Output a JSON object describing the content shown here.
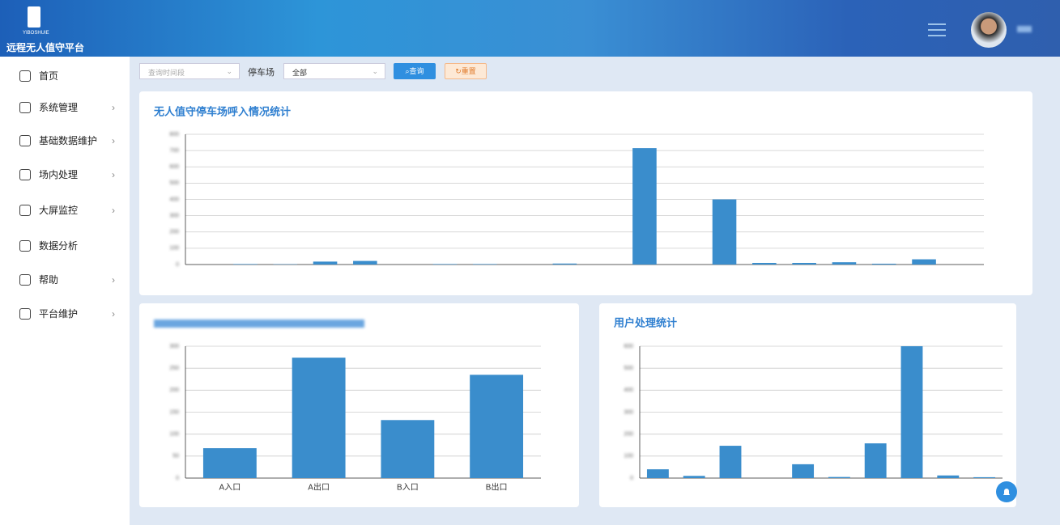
{
  "header": {
    "logo_text": "YIBOSHUIE",
    "title": "远程无人值守平台"
  },
  "sidebar": {
    "items": [
      "首页",
      "系统管理",
      "基础数据维护",
      "场内处理",
      "大屏监控",
      "数据分析",
      "帮助",
      "平台维护"
    ]
  },
  "filters": {
    "time_placeholder": "查询时间段",
    "lot_label": "停车场",
    "lot_value": "全部",
    "query": "查询",
    "reset": "重置"
  },
  "chart_data": [
    {
      "type": "bar",
      "title": "无人值守停车场呼入情况统计",
      "color": "#3a8dcc",
      "grid": true,
      "categories": [
        null,
        null,
        null,
        null,
        null,
        null,
        null,
        null,
        null,
        null,
        null,
        null,
        null,
        null,
        null,
        null,
        null,
        null,
        null,
        null
      ],
      "values": [
        0,
        3,
        2,
        18,
        22,
        0,
        3,
        3,
        0,
        6,
        0,
        715,
        0,
        400,
        10,
        10,
        14,
        5,
        32,
        0
      ],
      "ylim": [
        0,
        800
      ],
      "yticks": [
        0,
        100,
        200,
        300,
        400,
        500,
        600,
        700,
        800
      ]
    },
    {
      "type": "bar",
      "color": "#3a8dcc",
      "grid": true,
      "categories": [
        "A入口",
        "A出口",
        "B入口",
        "B出口"
      ],
      "values": [
        68,
        274,
        132,
        235
      ],
      "ylim": [
        0,
        300
      ],
      "yticks": [
        0,
        50,
        100,
        150,
        200,
        250,
        300
      ]
    },
    {
      "type": "bar",
      "title": "用户处理统计",
      "color": "#3a8dcc",
      "grid": true,
      "categories": [
        null,
        null,
        null,
        null,
        null,
        null,
        null,
        null,
        null,
        null
      ],
      "values": [
        40,
        10,
        147,
        0,
        63,
        5,
        158,
        600,
        12,
        4
      ],
      "ylim": [
        0,
        600
      ],
      "yticks": [
        0,
        100,
        200,
        300,
        400,
        500,
        600
      ]
    }
  ]
}
